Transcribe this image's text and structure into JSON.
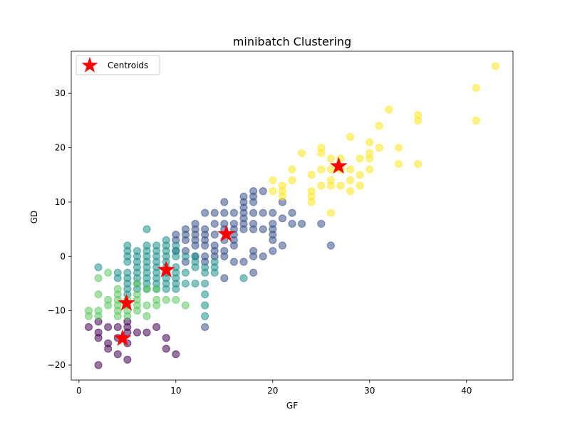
{
  "chart_data": {
    "type": "scatter",
    "title": "minibatch Clustering",
    "xlabel": "GF",
    "ylabel": "GD",
    "xlim": [
      -0.8,
      44.8
    ],
    "ylim": [
      -22.75,
      37.75
    ],
    "xticks": [
      0,
      10,
      20,
      30,
      40
    ],
    "yticks": [
      -20,
      -10,
      0,
      10,
      20,
      30
    ],
    "grid": false,
    "legend": {
      "placement": "top-left"
    },
    "point_alpha": 0.55,
    "clusters": [
      {
        "color": "#440154",
        "points": [
          [
            1,
            -13
          ],
          [
            2,
            -12
          ],
          [
            2,
            -14
          ],
          [
            2,
            -15
          ],
          [
            2,
            -20
          ],
          [
            3,
            -13
          ],
          [
            3,
            -16
          ],
          [
            3,
            -17
          ],
          [
            4,
            -13
          ],
          [
            4,
            -15
          ],
          [
            4,
            -18
          ],
          [
            5,
            -12
          ],
          [
            5,
            -13
          ],
          [
            5,
            -14
          ],
          [
            5,
            -16
          ],
          [
            5,
            -19
          ],
          [
            6,
            -14
          ],
          [
            7,
            -14
          ],
          [
            8,
            -13
          ],
          [
            9,
            -15
          ],
          [
            9,
            -17
          ],
          [
            10,
            -18
          ]
        ]
      },
      {
        "color": "#3b528b",
        "points": [
          [
            10,
            1
          ],
          [
            10,
            3
          ],
          [
            10,
            4
          ],
          [
            11,
            -1
          ],
          [
            11,
            1
          ],
          [
            11,
            3
          ],
          [
            11,
            4
          ],
          [
            11,
            5
          ],
          [
            12,
            0
          ],
          [
            12,
            2
          ],
          [
            12,
            3
          ],
          [
            12,
            4
          ],
          [
            12,
            5
          ],
          [
            12,
            6
          ],
          [
            13,
            -1
          ],
          [
            13,
            0
          ],
          [
            13,
            2
          ],
          [
            13,
            3
          ],
          [
            13,
            4
          ],
          [
            13,
            5
          ],
          [
            13,
            8
          ],
          [
            13,
            -13
          ],
          [
            14,
            0
          ],
          [
            14,
            1
          ],
          [
            14,
            2
          ],
          [
            14,
            4
          ],
          [
            14,
            6
          ],
          [
            14,
            8
          ],
          [
            15,
            -4
          ],
          [
            15,
            0
          ],
          [
            15,
            1
          ],
          [
            15,
            3
          ],
          [
            15,
            5
          ],
          [
            15,
            6
          ],
          [
            15,
            8
          ],
          [
            15,
            10
          ],
          [
            16,
            -1
          ],
          [
            16,
            3
          ],
          [
            16,
            4
          ],
          [
            16,
            5
          ],
          [
            16,
            6
          ],
          [
            16,
            8
          ],
          [
            16,
            2
          ],
          [
            17,
            5
          ],
          [
            17,
            6
          ],
          [
            17,
            8
          ],
          [
            17,
            9
          ],
          [
            17,
            10
          ],
          [
            17,
            11
          ],
          [
            17,
            7
          ],
          [
            17,
            -1
          ],
          [
            18,
            -3
          ],
          [
            18,
            0
          ],
          [
            18,
            1
          ],
          [
            18,
            5
          ],
          [
            18,
            6
          ],
          [
            18,
            8
          ],
          [
            18,
            10
          ],
          [
            18,
            11
          ],
          [
            18,
            12
          ],
          [
            19,
            0
          ],
          [
            19,
            5
          ],
          [
            19,
            8
          ],
          [
            19,
            12
          ],
          [
            20,
            1
          ],
          [
            20,
            3
          ],
          [
            20,
            4
          ],
          [
            20,
            5
          ],
          [
            20,
            8
          ],
          [
            20,
            6
          ],
          [
            21,
            2
          ],
          [
            21,
            7
          ],
          [
            21,
            10
          ],
          [
            22,
            6
          ],
          [
            22,
            8
          ],
          [
            23,
            6
          ],
          [
            25,
            6
          ],
          [
            26,
            2
          ]
        ]
      },
      {
        "color": "#21918c",
        "points": [
          [
            2,
            -2
          ],
          [
            4,
            -3
          ],
          [
            4,
            -4
          ],
          [
            5,
            2
          ],
          [
            5,
            0
          ],
          [
            5,
            1
          ],
          [
            5,
            -1
          ],
          [
            5,
            -3
          ],
          [
            5,
            -4
          ],
          [
            5,
            -5
          ],
          [
            5,
            -6
          ],
          [
            5,
            -7
          ],
          [
            6,
            -1
          ],
          [
            6,
            0
          ],
          [
            6,
            1
          ],
          [
            6,
            -2
          ],
          [
            6,
            -3
          ],
          [
            6,
            -4
          ],
          [
            6,
            -5
          ],
          [
            6,
            -6
          ],
          [
            7,
            5
          ],
          [
            7,
            0
          ],
          [
            7,
            1
          ],
          [
            7,
            2
          ],
          [
            7,
            -1
          ],
          [
            7,
            -2
          ],
          [
            7,
            -3
          ],
          [
            7,
            -4
          ],
          [
            7,
            -5
          ],
          [
            7,
            -6
          ],
          [
            8,
            2
          ],
          [
            8,
            1
          ],
          [
            8,
            0
          ],
          [
            8,
            -1
          ],
          [
            8,
            -2
          ],
          [
            8,
            -3
          ],
          [
            8,
            -4
          ],
          [
            8,
            -5
          ],
          [
            8,
            -6
          ],
          [
            9,
            3
          ],
          [
            9,
            2
          ],
          [
            9,
            1
          ],
          [
            9,
            0
          ],
          [
            9,
            -1
          ],
          [
            9,
            -2
          ],
          [
            9,
            -3
          ],
          [
            9,
            -4
          ],
          [
            9,
            -5
          ],
          [
            9,
            -6
          ],
          [
            10,
            2
          ],
          [
            10,
            1
          ],
          [
            10,
            0
          ],
          [
            10,
            -2
          ],
          [
            10,
            -3
          ],
          [
            10,
            -4
          ],
          [
            10,
            -5
          ],
          [
            10,
            -6
          ],
          [
            11,
            0
          ],
          [
            11,
            -3
          ],
          [
            11,
            -5
          ],
          [
            12,
            0
          ],
          [
            12,
            -1
          ],
          [
            12,
            -2
          ],
          [
            12,
            -5
          ],
          [
            13,
            -2
          ],
          [
            13,
            -3
          ],
          [
            13,
            -5
          ],
          [
            13,
            -7
          ],
          [
            13,
            -9
          ],
          [
            13,
            -11
          ],
          [
            14,
            -1
          ],
          [
            14,
            -2
          ],
          [
            14,
            -3
          ],
          [
            17,
            -4
          ]
        ]
      },
      {
        "color": "#5ec962",
        "points": [
          [
            1,
            -10
          ],
          [
            1,
            -11
          ],
          [
            2,
            -4
          ],
          [
            2,
            -7
          ],
          [
            2,
            -10
          ],
          [
            2,
            -11
          ],
          [
            3,
            -3
          ],
          [
            3,
            -8
          ],
          [
            3,
            -9
          ],
          [
            4,
            -6
          ],
          [
            4,
            -8
          ],
          [
            4,
            -9
          ],
          [
            4,
            -10
          ],
          [
            4,
            -11
          ],
          [
            4,
            -7
          ],
          [
            5,
            -8
          ],
          [
            5,
            -9
          ],
          [
            5,
            -10
          ],
          [
            5,
            -11
          ],
          [
            6,
            -5
          ],
          [
            6,
            -7
          ],
          [
            6,
            -8
          ],
          [
            6,
            -9
          ],
          [
            6,
            -10
          ],
          [
            7,
            -6
          ],
          [
            7,
            -9
          ],
          [
            7,
            -11
          ],
          [
            8,
            -6
          ],
          [
            8,
            -8
          ],
          [
            8,
            -9
          ],
          [
            9,
            -8
          ],
          [
            10,
            -8
          ],
          [
            11,
            -9
          ]
        ]
      },
      {
        "color": "#fde725",
        "points": [
          [
            20,
            12
          ],
          [
            20,
            14
          ],
          [
            21,
            11
          ],
          [
            21,
            12
          ],
          [
            21,
            13
          ],
          [
            22,
            14
          ],
          [
            22,
            16
          ],
          [
            23,
            19
          ],
          [
            24,
            10
          ],
          [
            24,
            11
          ],
          [
            24,
            12
          ],
          [
            24,
            15
          ],
          [
            25,
            13
          ],
          [
            25,
            16
          ],
          [
            25,
            19
          ],
          [
            25,
            20
          ],
          [
            26,
            8
          ],
          [
            26,
            13
          ],
          [
            26,
            14
          ],
          [
            26,
            16
          ],
          [
            26,
            18
          ],
          [
            27,
            13
          ],
          [
            27,
            16
          ],
          [
            27,
            18
          ],
          [
            28,
            12
          ],
          [
            28,
            14
          ],
          [
            28,
            16
          ],
          [
            28,
            22
          ],
          [
            29,
            13
          ],
          [
            29,
            15
          ],
          [
            29,
            18
          ],
          [
            30,
            16
          ],
          [
            30,
            18
          ],
          [
            30,
            19
          ],
          [
            30,
            21
          ],
          [
            31,
            20
          ],
          [
            31,
            24
          ],
          [
            32,
            27
          ],
          [
            33,
            17
          ],
          [
            33,
            20
          ],
          [
            35,
            17
          ],
          [
            35,
            25
          ],
          [
            35,
            26
          ],
          [
            41,
            25
          ],
          [
            41,
            31
          ],
          [
            43,
            35
          ]
        ]
      }
    ],
    "centroids": {
      "label": "Centroids",
      "color": "#ff0000",
      "points": [
        [
          4.5,
          -15.1
        ],
        [
          4.9,
          -8.6
        ],
        [
          9.0,
          -2.5
        ],
        [
          15.2,
          4.1
        ],
        [
          26.8,
          16.6
        ]
      ]
    }
  }
}
